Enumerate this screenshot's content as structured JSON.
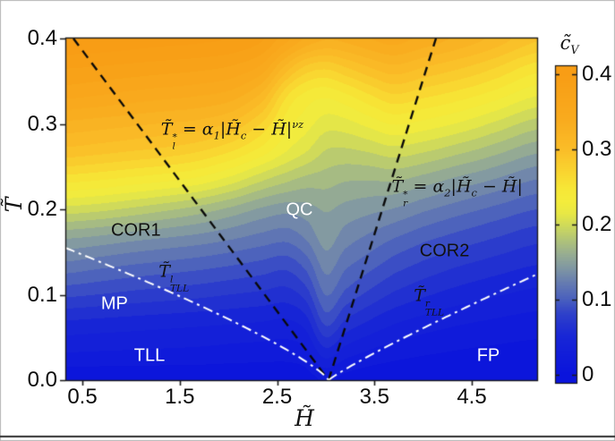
{
  "figure": {
    "background": "#ffffff",
    "frame_color": "#b5b5b5",
    "bottom_rule_color": "#2e2e2e"
  },
  "axes": {
    "x": {
      "label": "H̃",
      "lim": [
        0.325,
        5.171
      ],
      "ticks": [
        {
          "v": 0.5,
          "label": "0.5"
        },
        {
          "v": 1.5,
          "label": "1.5"
        },
        {
          "v": 2.5,
          "label": "2.5"
        },
        {
          "v": 3.5,
          "label": "3.5"
        },
        {
          "v": 4.5,
          "label": "4.5"
        }
      ]
    },
    "y": {
      "label": "T̃",
      "lim": [
        0,
        0.401
      ],
      "ticks": [
        {
          "v": 0.0,
          "label": "0.0"
        },
        {
          "v": 0.1,
          "label": "0.1"
        },
        {
          "v": 0.2,
          "label": "0.2"
        },
        {
          "v": 0.3,
          "label": "0.3"
        },
        {
          "v": 0.4,
          "label": "0.4"
        }
      ]
    }
  },
  "colorbar": {
    "title_parts": [
      {
        "t": "c̃"
      },
      {
        "sub": "V"
      }
    ],
    "vmin": -0.011,
    "vmax": 0.412,
    "ticks": [
      {
        "v": 0,
        "label": "0"
      },
      {
        "v": 0.1,
        "label": "0.1"
      },
      {
        "v": 0.2,
        "label": "0.2"
      },
      {
        "v": 0.3,
        "label": "0.3"
      },
      {
        "v": 0.4,
        "label": "0.4"
      }
    ]
  },
  "colormap": [
    {
      "v": 0.0,
      "c": "#0A14DC"
    },
    {
      "v": 0.05,
      "c": "#1826D6"
    },
    {
      "v": 0.08,
      "c": "#2E40CA"
    },
    {
      "v": 0.1,
      "c": "#4A60BE"
    },
    {
      "v": 0.12,
      "c": "#6379B2"
    },
    {
      "v": 0.14,
      "c": "#7E95A4"
    },
    {
      "v": 0.16,
      "c": "#97AD92"
    },
    {
      "v": 0.18,
      "c": "#B2C577"
    },
    {
      "v": 0.2,
      "c": "#D2DC58"
    },
    {
      "v": 0.215,
      "c": "#E8E845"
    },
    {
      "v": 0.23,
      "c": "#F4EC3C"
    },
    {
      "v": 0.25,
      "c": "#F7E636"
    },
    {
      "v": 0.27,
      "c": "#F9D530"
    },
    {
      "v": 0.3,
      "c": "#FABD28"
    },
    {
      "v": 0.34,
      "c": "#F9AB1E"
    },
    {
      "v": 0.4,
      "c": "#F89D15"
    },
    {
      "v": 0.42,
      "c": "#F89C14"
    }
  ],
  "chart_data": {
    "type": "heatmap",
    "title": "",
    "xlabel": "H̃",
    "ylabel": "T̃",
    "zlabel": "c̃V",
    "xlim": [
      0.325,
      5.171
    ],
    "ylim": [
      0,
      0.401
    ],
    "zlim": [
      0,
      0.42
    ],
    "contour_step": 0.0137,
    "critical_field": 3.03,
    "H": [
      0.33,
      0.65,
      1.0,
      1.35,
      1.7,
      2.05,
      2.35,
      2.6,
      2.8,
      3.0,
      3.2,
      3.45,
      3.7,
      4.0,
      4.35,
      4.7,
      5.17
    ],
    "T": [
      0.0,
      0.033,
      0.067,
      0.1,
      0.133,
      0.167,
      0.2,
      0.233,
      0.267,
      0.3,
      0.333,
      0.367,
      0.4
    ],
    "cV": [
      [
        0.004,
        0.004,
        0.004,
        0.004,
        0.004,
        0.004,
        0.004,
        0.005,
        0.008,
        0.015,
        0.009,
        0.005,
        0.004,
        0.003,
        0.003,
        0.002,
        0.002
      ],
      [
        0.028,
        0.027,
        0.026,
        0.025,
        0.024,
        0.022,
        0.021,
        0.02,
        0.025,
        0.05,
        0.035,
        0.026,
        0.02,
        0.016,
        0.013,
        0.011,
        0.009
      ],
      [
        0.052,
        0.05,
        0.048,
        0.046,
        0.044,
        0.042,
        0.04,
        0.038,
        0.048,
        0.085,
        0.065,
        0.052,
        0.042,
        0.035,
        0.029,
        0.025,
        0.021
      ],
      [
        0.085,
        0.082,
        0.078,
        0.075,
        0.072,
        0.068,
        0.065,
        0.062,
        0.075,
        0.11,
        0.092,
        0.078,
        0.066,
        0.057,
        0.049,
        0.043,
        0.037
      ],
      [
        0.118,
        0.113,
        0.108,
        0.104,
        0.1,
        0.095,
        0.09,
        0.086,
        0.1,
        0.128,
        0.112,
        0.1,
        0.088,
        0.078,
        0.069,
        0.062,
        0.054
      ],
      [
        0.152,
        0.148,
        0.142,
        0.137,
        0.132,
        0.125,
        0.118,
        0.114,
        0.125,
        0.143,
        0.13,
        0.12,
        0.11,
        0.1,
        0.091,
        0.083,
        0.073
      ],
      [
        0.2,
        0.196,
        0.189,
        0.181,
        0.172,
        0.16,
        0.148,
        0.142,
        0.145,
        0.152,
        0.146,
        0.141,
        0.136,
        0.126,
        0.116,
        0.107,
        0.096
      ],
      [
        0.25,
        0.246,
        0.24,
        0.234,
        0.226,
        0.21,
        0.192,
        0.18,
        0.172,
        0.17,
        0.165,
        0.164,
        0.165,
        0.157,
        0.146,
        0.136,
        0.122
      ],
      [
        0.295,
        0.291,
        0.286,
        0.281,
        0.273,
        0.258,
        0.238,
        0.218,
        0.205,
        0.19,
        0.188,
        0.192,
        0.198,
        0.192,
        0.181,
        0.169,
        0.152
      ],
      [
        0.325,
        0.322,
        0.318,
        0.314,
        0.31,
        0.298,
        0.272,
        0.238,
        0.225,
        0.212,
        0.214,
        0.224,
        0.234,
        0.228,
        0.218,
        0.204,
        0.185
      ],
      [
        0.36,
        0.356,
        0.351,
        0.347,
        0.343,
        0.335,
        0.31,
        0.262,
        0.242,
        0.236,
        0.244,
        0.259,
        0.272,
        0.264,
        0.254,
        0.241,
        0.22
      ],
      [
        0.385,
        0.383,
        0.38,
        0.377,
        0.374,
        0.368,
        0.352,
        0.31,
        0.285,
        0.278,
        0.288,
        0.302,
        0.312,
        0.302,
        0.291,
        0.277,
        0.254
      ],
      [
        0.41,
        0.408,
        0.405,
        0.402,
        0.4,
        0.396,
        0.385,
        0.36,
        0.34,
        0.33,
        0.333,
        0.342,
        0.348,
        0.338,
        0.326,
        0.312,
        0.29
      ]
    ],
    "boundaries": [
      {
        "name": "left-qc-crossover-line",
        "style": "dashed",
        "color": "#0a0a0a",
        "from": {
          "H": 0.408,
          "T": 0.4
        },
        "to": {
          "H": 3.029,
          "T": 0.0
        }
      },
      {
        "name": "right-qc-crossover-line",
        "style": "dashed",
        "color": "#0a0a0a",
        "from": {
          "H": 3.029,
          "T": 0.0
        },
        "to": {
          "H": 4.132,
          "T": 0.4
        }
      },
      {
        "name": "left-tll-crossover-line",
        "style": "dashdot",
        "color": "#ffffff",
        "curve": {
          "side": "left",
          "Hc": 3.029,
          "H_edge": 0.325,
          "T_edge": 0.155,
          "exponent": 0.8
        }
      },
      {
        "name": "right-tll-crossover-line",
        "style": "dashdot",
        "color": "#ffffff",
        "curve": {
          "side": "right",
          "Hc": 3.029,
          "H_edge": 5.171,
          "T_edge": 0.124,
          "exponent": 0.9
        }
      }
    ],
    "labels": [
      {
        "name": "region-label-cor1",
        "text": "COR1",
        "color": "#111111",
        "font": "sans",
        "size": 20,
        "H": 1.05,
        "T": 0.175
      },
      {
        "name": "region-label-qc",
        "text": "QC",
        "color": "#ffffff",
        "font": "sans",
        "size": 20,
        "H": 2.73,
        "T": 0.199
      },
      {
        "name": "region-label-cor2",
        "text": "COR2",
        "color": "#111111",
        "font": "sans",
        "size": 20,
        "H": 4.22,
        "T": 0.151
      },
      {
        "name": "region-label-mp",
        "text": "MP",
        "color": "#ffffff",
        "font": "sans",
        "size": 20,
        "H": 0.83,
        "T": 0.089
      },
      {
        "name": "region-label-tll",
        "text": "TLL",
        "color": "#ffffff",
        "font": "sans",
        "size": 20,
        "H": 1.19,
        "T": 0.028
      },
      {
        "name": "region-label-fp",
        "text": "FP",
        "color": "#ffffff",
        "font": "sans",
        "size": 20,
        "H": 4.67,
        "T": 0.028
      },
      {
        "name": "formula-left-crossover",
        "color": "#111111",
        "font": "math",
        "size": 19,
        "H": 2.04,
        "T": 0.286,
        "parts": [
          {
            "t": "T̃"
          },
          {
            "sup": "*",
            "sub": "l"
          },
          {
            "t": " = α"
          },
          {
            "sub": "1"
          },
          {
            "t": "|H̃"
          },
          {
            "sub": "c"
          },
          {
            "t": " − H̃|"
          },
          {
            "sup": "νz"
          }
        ]
      },
      {
        "name": "formula-right-crossover",
        "color": "#111111",
        "font": "math",
        "size": 19,
        "H": 4.35,
        "T": 0.219,
        "parts": [
          {
            "t": "T̃"
          },
          {
            "sup": "*",
            "sub": "r"
          },
          {
            "t": " = α"
          },
          {
            "sub": "2"
          },
          {
            "t": "|H̃"
          },
          {
            "sub": "c"
          },
          {
            "t": " − H̃|"
          }
        ]
      },
      {
        "name": "label-tll-left-temperature",
        "color": "#111111",
        "font": "math",
        "size": 19,
        "H": 1.44,
        "T": 0.119,
        "parts": [
          {
            "t": "T̃"
          },
          {
            "sup": "l",
            "sub": "TLL"
          }
        ]
      },
      {
        "name": "label-tll-right-temperature",
        "color": "#111111",
        "font": "math",
        "size": 19,
        "H": 4.06,
        "T": 0.091,
        "parts": [
          {
            "t": "T̃"
          },
          {
            "sup": "r",
            "sub": "TLL"
          }
        ]
      }
    ]
  }
}
